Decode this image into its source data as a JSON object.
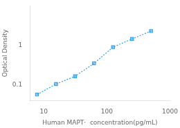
{
  "chart_data": {
    "type": "line",
    "xlabel": "Human MAPT·  concentration(pg/mL)",
    "ylabel": "Optical Density",
    "x": [
      7.8,
      15.6,
      31.25,
      62.5,
      125,
      250,
      500
    ],
    "values": [
      0.057,
      0.105,
      0.165,
      0.35,
      0.9,
      1.45,
      2.3
    ],
    "log": true,
    "xlim": [
      6,
      1000
    ],
    "ylim": [
      0.04,
      10
    ],
    "xticks": [
      10,
      100,
      1000
    ],
    "yticks": [
      0.1,
      1
    ],
    "marker": "square",
    "line_style": "dotted",
    "grid": false
  }
}
